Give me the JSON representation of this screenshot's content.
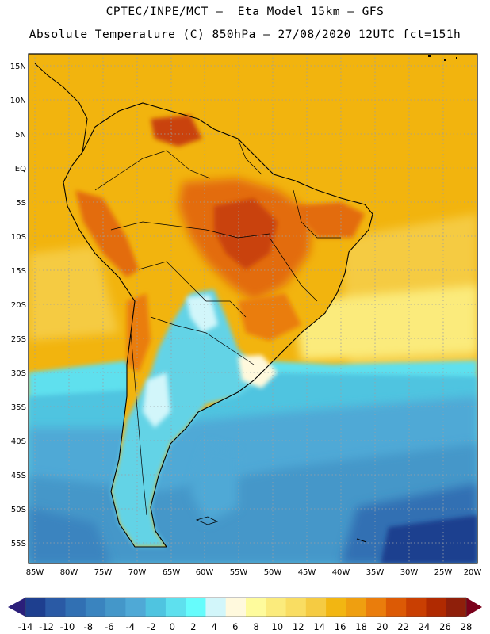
{
  "header": {
    "line1": "CPTEC/INPE/MCT —  Eta Model 15km — GFS",
    "line2": "Absolute Temperature (C) 850hPa — 27/08/2020 12UTC fct=151h"
  },
  "axes": {
    "lat_labels": [
      "15N",
      "10N",
      "5N",
      "EQ",
      "5S",
      "10S",
      "15S",
      "20S",
      "25S",
      "30S",
      "35S",
      "40S",
      "45S",
      "50S",
      "55S"
    ],
    "lon_labels": [
      "85W",
      "80W",
      "75W",
      "70W",
      "65W",
      "60W",
      "55W",
      "50W",
      "45W",
      "40W",
      "35W",
      "30W",
      "25W",
      "20W"
    ]
  },
  "colorbar": {
    "labels": [
      "-14",
      "-12",
      "-10",
      "-8",
      "-6",
      "-4",
      "-2",
      "0",
      "2",
      "4",
      "6",
      "8",
      "10",
      "12",
      "14",
      "16",
      "18",
      "20",
      "22",
      "24",
      "26",
      "28"
    ],
    "colors": [
      "#1e3f8f",
      "#2a5aa5",
      "#3170b3",
      "#3a84bf",
      "#4497c9",
      "#4fa9d6",
      "#4fc4e0",
      "#5ee0ee",
      "#66fcfc",
      "#d2f6fa",
      "#fff9dd",
      "#fefb9c",
      "#fbeb7c",
      "#f9dd62",
      "#f5cb42",
      "#f2b612",
      "#ef9f10",
      "#ea7d0c",
      "#dc5a05",
      "#c93f02",
      "#b02a01",
      "#8f1f0a"
    ],
    "arrow_low_color": "#2b1f7a",
    "arrow_high_color": "#7a001a"
  },
  "palette": {
    "ocean_warm": "#f2b40e",
    "land_hot": "#e36c08",
    "land_hotter": "#c9420a",
    "cold_sea": "#55c9df",
    "cold_land": "#63d3e6",
    "deep_cold": "#2f56a2",
    "coast": "#000000"
  }
}
